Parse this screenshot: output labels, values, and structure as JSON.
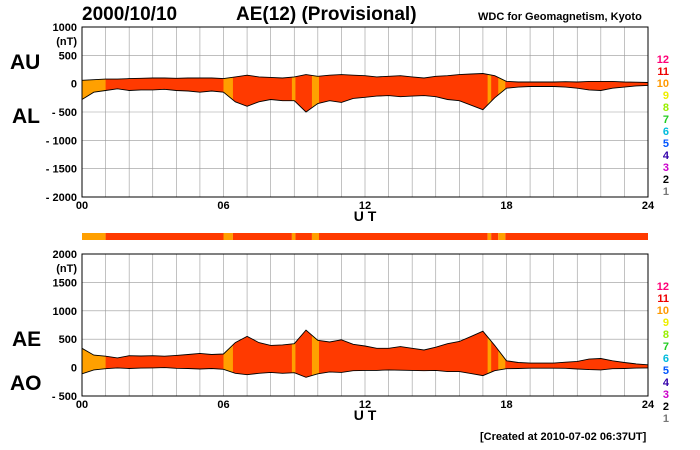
{
  "header": {
    "date": "2000/10/10",
    "title": "AE(12) (Provisional)",
    "source": "WDC for Geomagnetism, Kyoto",
    "created": "[Created at 2010-07-02 06:37UT]"
  },
  "colors": {
    "fill_main": "#ff3a00",
    "fill_stations_10": "#ffa000",
    "trace": "#000000",
    "grid": "#999999",
    "level_colors": [
      "#aaaaaa",
      "#777777",
      "#000000",
      "#cc00cc",
      "#3300aa",
      "#0055ff",
      "#00bbdd",
      "#22cc22",
      "#99ee00",
      "#eeee00",
      "#ff9900",
      "#ee0000",
      "#ff0077"
    ]
  },
  "chart_data": [
    {
      "type": "area",
      "name": "AU/AL",
      "labels": [
        "AU",
        "AL"
      ],
      "unit_label": "(nT)",
      "xlabel": "U T",
      "x_ticks": [
        "00",
        "06",
        "12",
        "18",
        "24"
      ],
      "y_ticks": [
        1000,
        500,
        0,
        -500,
        -1000,
        -1500,
        -2000
      ],
      "ylim": [
        -2000,
        1000
      ],
      "xlim": [
        0,
        24
      ],
      "grid": true,
      "x_hours": [
        0,
        0.5,
        1,
        1.5,
        2,
        2.5,
        3,
        3.5,
        4,
        4.5,
        5,
        5.5,
        6,
        6.5,
        7,
        7.5,
        8,
        8.5,
        9,
        9.5,
        10,
        10.5,
        11,
        11.5,
        12,
        12.5,
        13,
        13.5,
        14,
        14.5,
        15,
        15.5,
        16,
        16.5,
        17,
        17.5,
        18,
        18.5,
        19,
        19.5,
        20,
        20.5,
        21,
        21.5,
        22,
        22.5,
        23,
        23.5,
        24
      ],
      "au": [
        60,
        70,
        80,
        80,
        90,
        95,
        100,
        100,
        95,
        100,
        100,
        100,
        90,
        120,
        150,
        120,
        110,
        100,
        120,
        160,
        130,
        150,
        160,
        150,
        140,
        120,
        130,
        140,
        120,
        100,
        130,
        140,
        160,
        170,
        180,
        140,
        40,
        30,
        30,
        30,
        30,
        35,
        30,
        40,
        40,
        40,
        30,
        25,
        20
      ],
      "al": [
        -280,
        -150,
        -120,
        -90,
        -120,
        -110,
        -110,
        -100,
        -120,
        -130,
        -150,
        -130,
        -150,
        -320,
        -400,
        -320,
        -280,
        -300,
        -300,
        -500,
        -350,
        -300,
        -330,
        -260,
        -240,
        -220,
        -210,
        -230,
        -220,
        -210,
        -230,
        -280,
        -300,
        -380,
        -460,
        -250,
        -80,
        -60,
        -50,
        -50,
        -50,
        -60,
        -80,
        -110,
        -120,
        -80,
        -60,
        -40,
        -30
      ]
    },
    {
      "type": "area",
      "name": "AE/AO",
      "labels": [
        "AE",
        "AO"
      ],
      "unit_label": "(nT)",
      "xlabel": "U T",
      "x_ticks": [
        "00",
        "06",
        "12",
        "18",
        "24"
      ],
      "y_ticks": [
        2000,
        1500,
        1000,
        500,
        0,
        -500
      ],
      "ylim": [
        -500,
        2000
      ],
      "xlim": [
        0,
        24
      ],
      "grid": true,
      "x_hours": [
        0,
        0.5,
        1,
        1.5,
        2,
        2.5,
        3,
        3.5,
        4,
        4.5,
        5,
        5.5,
        6,
        6.5,
        7,
        7.5,
        8,
        8.5,
        9,
        9.5,
        10,
        10.5,
        11,
        11.5,
        12,
        12.5,
        13,
        13.5,
        14,
        14.5,
        15,
        15.5,
        16,
        16.5,
        17,
        17.5,
        18,
        18.5,
        19,
        19.5,
        20,
        20.5,
        21,
        21.5,
        22,
        22.5,
        23,
        23.5,
        24
      ],
      "ae": [
        340,
        220,
        200,
        170,
        210,
        205,
        210,
        200,
        215,
        230,
        250,
        230,
        240,
        440,
        550,
        440,
        390,
        400,
        420,
        660,
        480,
        450,
        490,
        410,
        380,
        340,
        340,
        370,
        340,
        310,
        360,
        420,
        460,
        550,
        640,
        390,
        120,
        90,
        80,
        80,
        80,
        95,
        110,
        150,
        160,
        120,
        90,
        65,
        50
      ],
      "ao": [
        -110,
        -40,
        -20,
        -5,
        -15,
        -8,
        -5,
        0,
        -12,
        -15,
        -25,
        -15,
        -30,
        -100,
        -125,
        -100,
        -85,
        -100,
        -90,
        -170,
        -110,
        -75,
        -85,
        -55,
        -50,
        -50,
        -40,
        -45,
        -50,
        -55,
        -50,
        -70,
        -70,
        -105,
        -140,
        -55,
        -20,
        -15,
        -10,
        -10,
        -10,
        -12,
        -25,
        -35,
        -40,
        -20,
        -15,
        -8,
        -5
      ]
    }
  ],
  "station_bar": {
    "levels_legend": [
      "12",
      "11",
      "10",
      "9",
      "8",
      "7",
      "6",
      "5",
      "4",
      "3",
      "2",
      "1"
    ],
    "segments": [
      {
        "start": 0,
        "end": 1.0,
        "stations": 10
      },
      {
        "start": 1.0,
        "end": 6.0,
        "stations": 11
      },
      {
        "start": 6.0,
        "end": 6.4,
        "stations": 10
      },
      {
        "start": 6.4,
        "end": 8.9,
        "stations": 11
      },
      {
        "start": 8.9,
        "end": 9.05,
        "stations": 10
      },
      {
        "start": 9.05,
        "end": 9.75,
        "stations": 11
      },
      {
        "start": 9.75,
        "end": 10.05,
        "stations": 10
      },
      {
        "start": 10.05,
        "end": 17.2,
        "stations": 11
      },
      {
        "start": 17.2,
        "end": 17.35,
        "stations": 10
      },
      {
        "start": 17.35,
        "end": 17.65,
        "stations": 11
      },
      {
        "start": 17.65,
        "end": 17.95,
        "stations": 10
      },
      {
        "start": 17.95,
        "end": 24,
        "stations": 11
      }
    ]
  }
}
